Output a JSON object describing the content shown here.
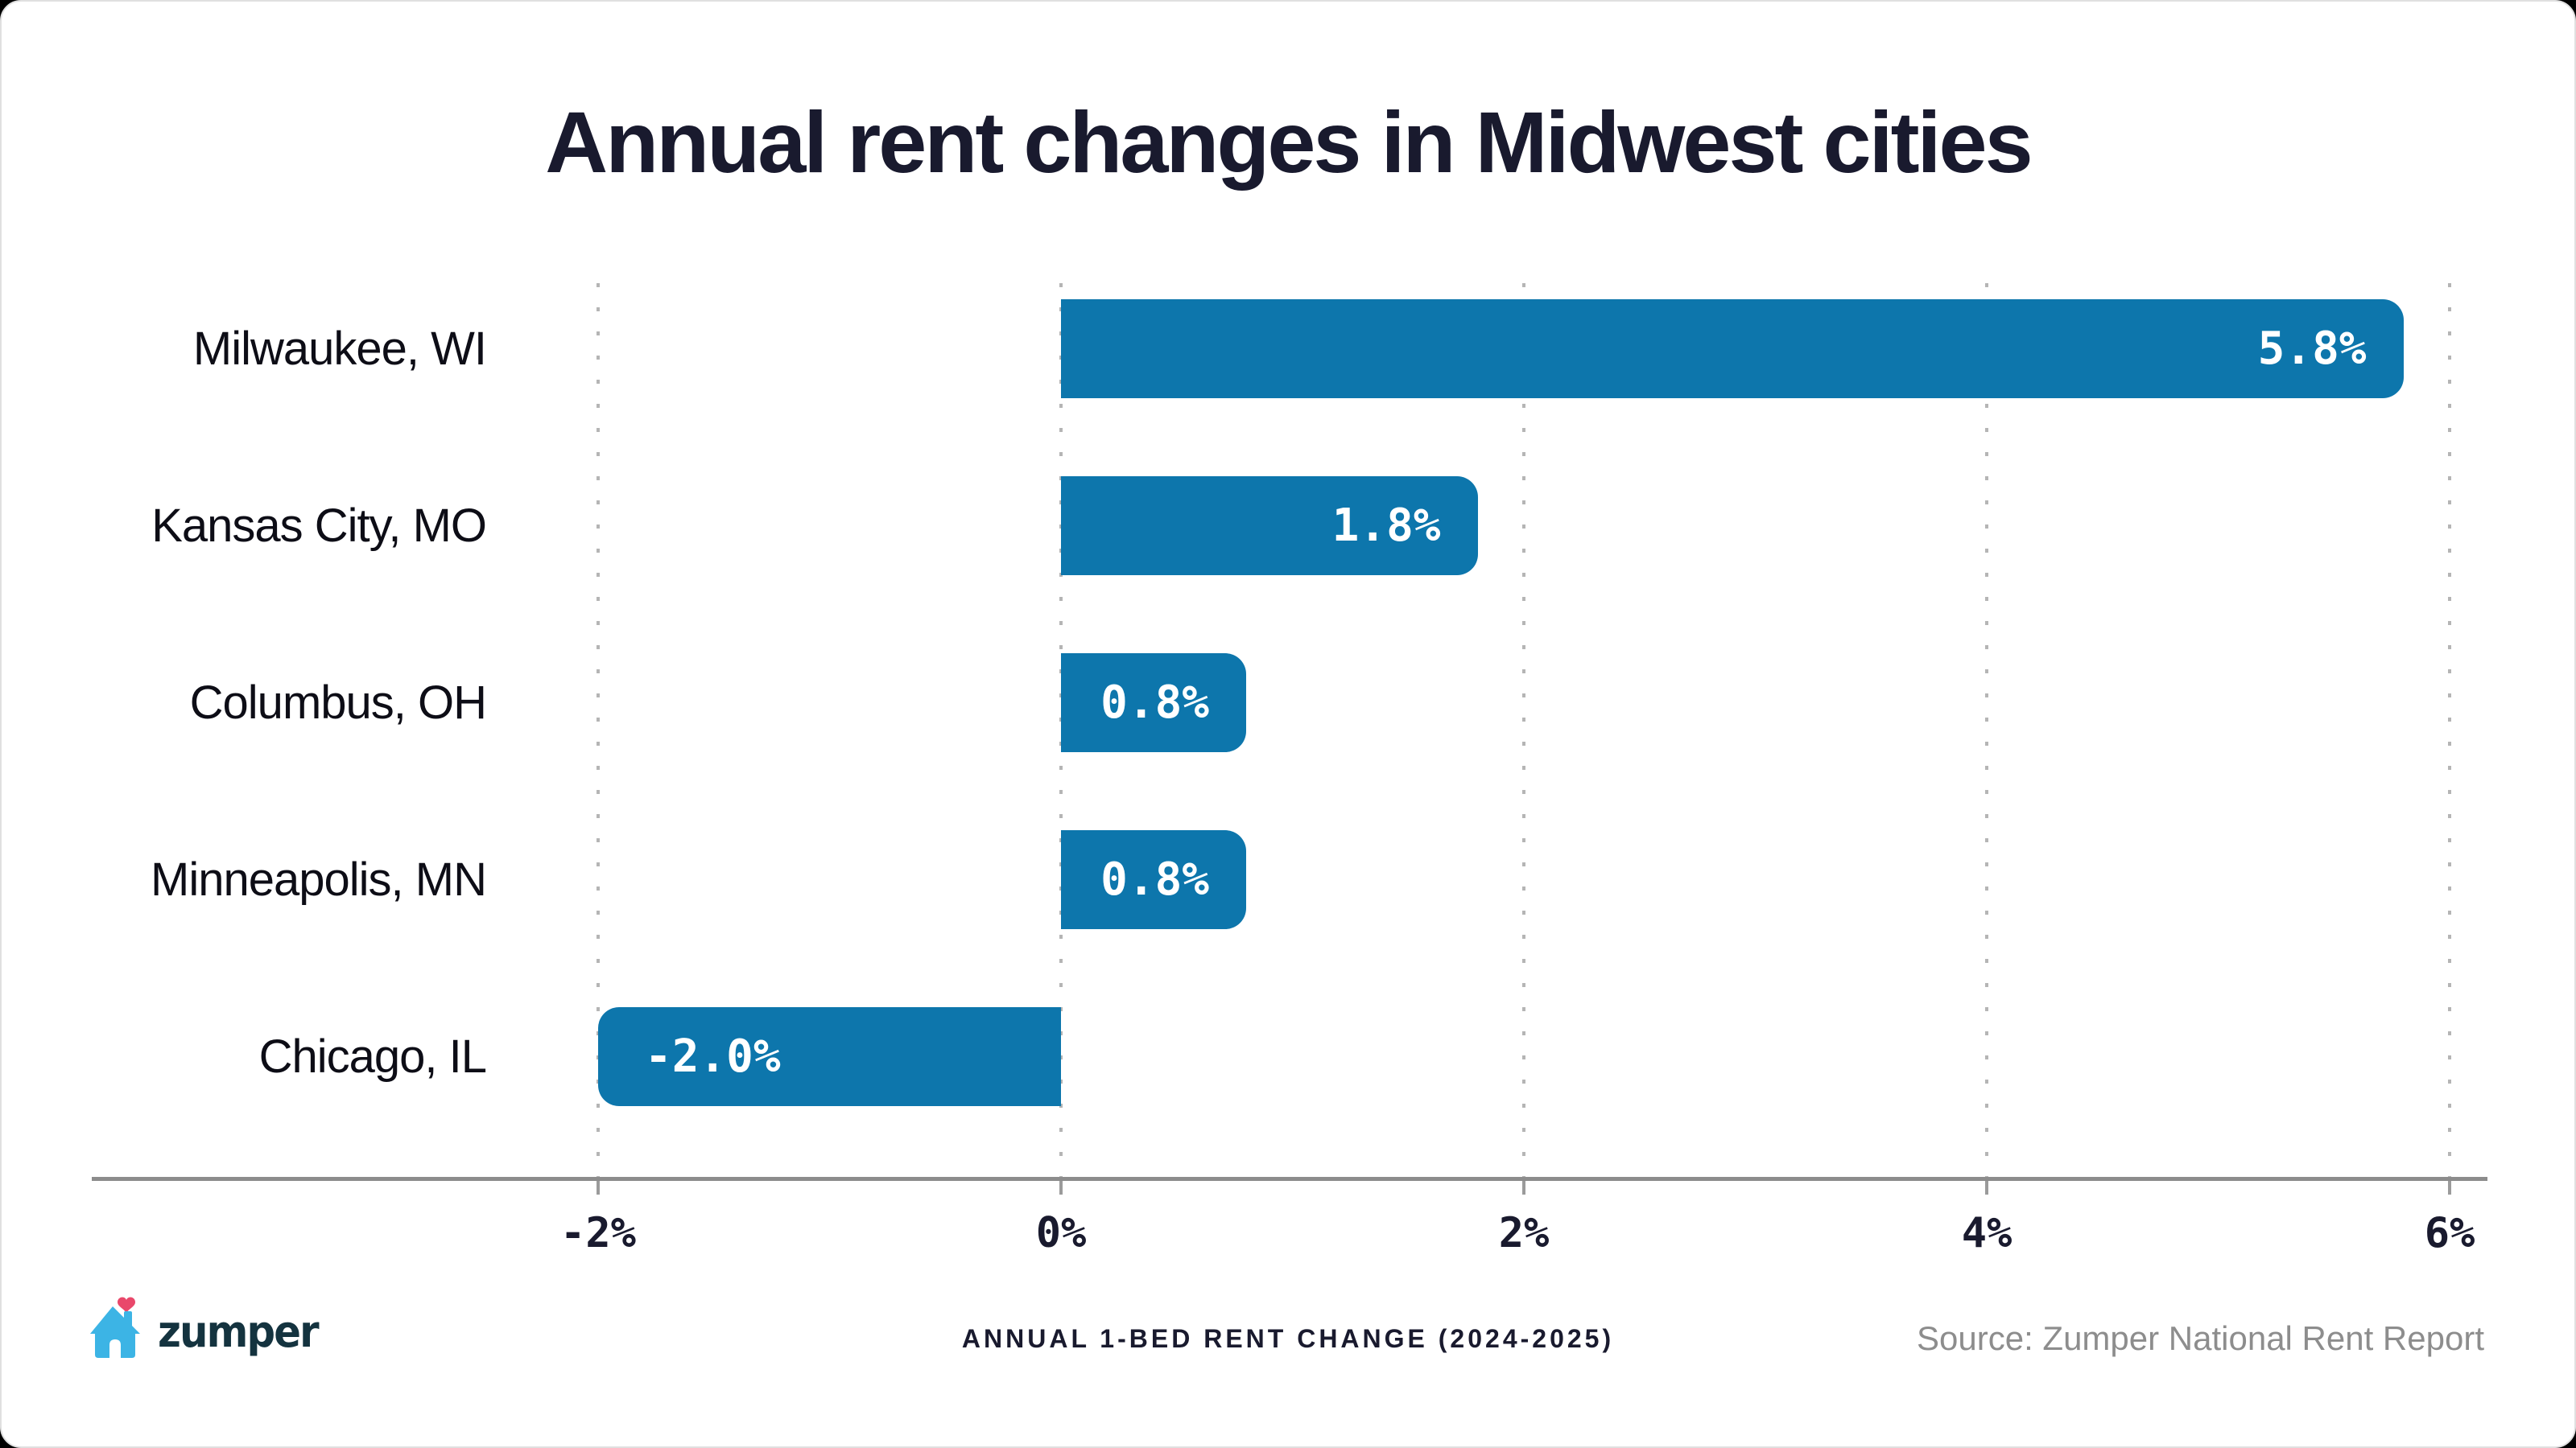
{
  "title": "Annual rent changes in Midwest cities",
  "chart_data": {
    "type": "bar",
    "orientation": "horizontal",
    "title": "Annual rent changes in Midwest cities",
    "categories": [
      "Milwaukee, WI",
      "Kansas City, MO",
      "Columbus, OH",
      "Minneapolis, MN",
      "Chicago, IL"
    ],
    "values": [
      5.8,
      1.8,
      0.8,
      0.8,
      -2.0
    ],
    "value_labels": [
      "5.8%",
      "1.8%",
      "0.8%",
      "0.8%",
      "-2.0%"
    ],
    "xlabel": "",
    "ylabel": "",
    "xlim": [
      -2,
      6
    ],
    "grid": "vertical-dotted",
    "legend": "none",
    "x_ticks": [
      {
        "label": "-2%",
        "value": -2
      },
      {
        "label": "0%",
        "value": 0
      },
      {
        "label": "2%",
        "value": 2
      },
      {
        "label": "4%",
        "value": 4
      },
      {
        "label": "6%",
        "value": 6
      }
    ]
  },
  "footer": {
    "logo_text": "zumper",
    "caption": "ANNUAL 1-BED RENT CHANGE (2024-2025)",
    "source": "Source: Zumper National Rent Report"
  },
  "colors": {
    "bar": "#0D76AC",
    "dark_text": "#191A2E",
    "city_text": "#0D0D16",
    "axis_line": "#8C8C8C",
    "grid_dots": "#B5B5B5",
    "source_text": "#8D8D8D",
    "value_text": "#FFFFFF",
    "logo_house_blue": "#3CB4E5",
    "logo_heart_pink": "#E9486B",
    "logo_text": "#14333F",
    "background": "#FFFFFF"
  }
}
